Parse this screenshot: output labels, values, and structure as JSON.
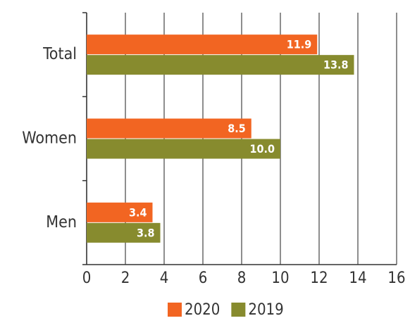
{
  "chart_data": {
    "type": "hbar",
    "categories": [
      "Total",
      "Women",
      "Men"
    ],
    "series": [
      {
        "name": "2020",
        "color": "#f26522",
        "values": [
          11.9,
          8.5,
          3.4
        ],
        "value_labels": [
          "11.9",
          "8.5",
          "3.4"
        ]
      },
      {
        "name": "2019",
        "color": "#878b2e",
        "values": [
          13.8,
          10.0,
          3.8
        ],
        "value_labels": [
          "13.8",
          "10.0",
          "3.8"
        ]
      }
    ],
    "xlim": [
      0,
      16
    ],
    "xticks": [
      0,
      2,
      4,
      6,
      8,
      10,
      12,
      14,
      16
    ],
    "grid": true,
    "legend": "bottom"
  }
}
